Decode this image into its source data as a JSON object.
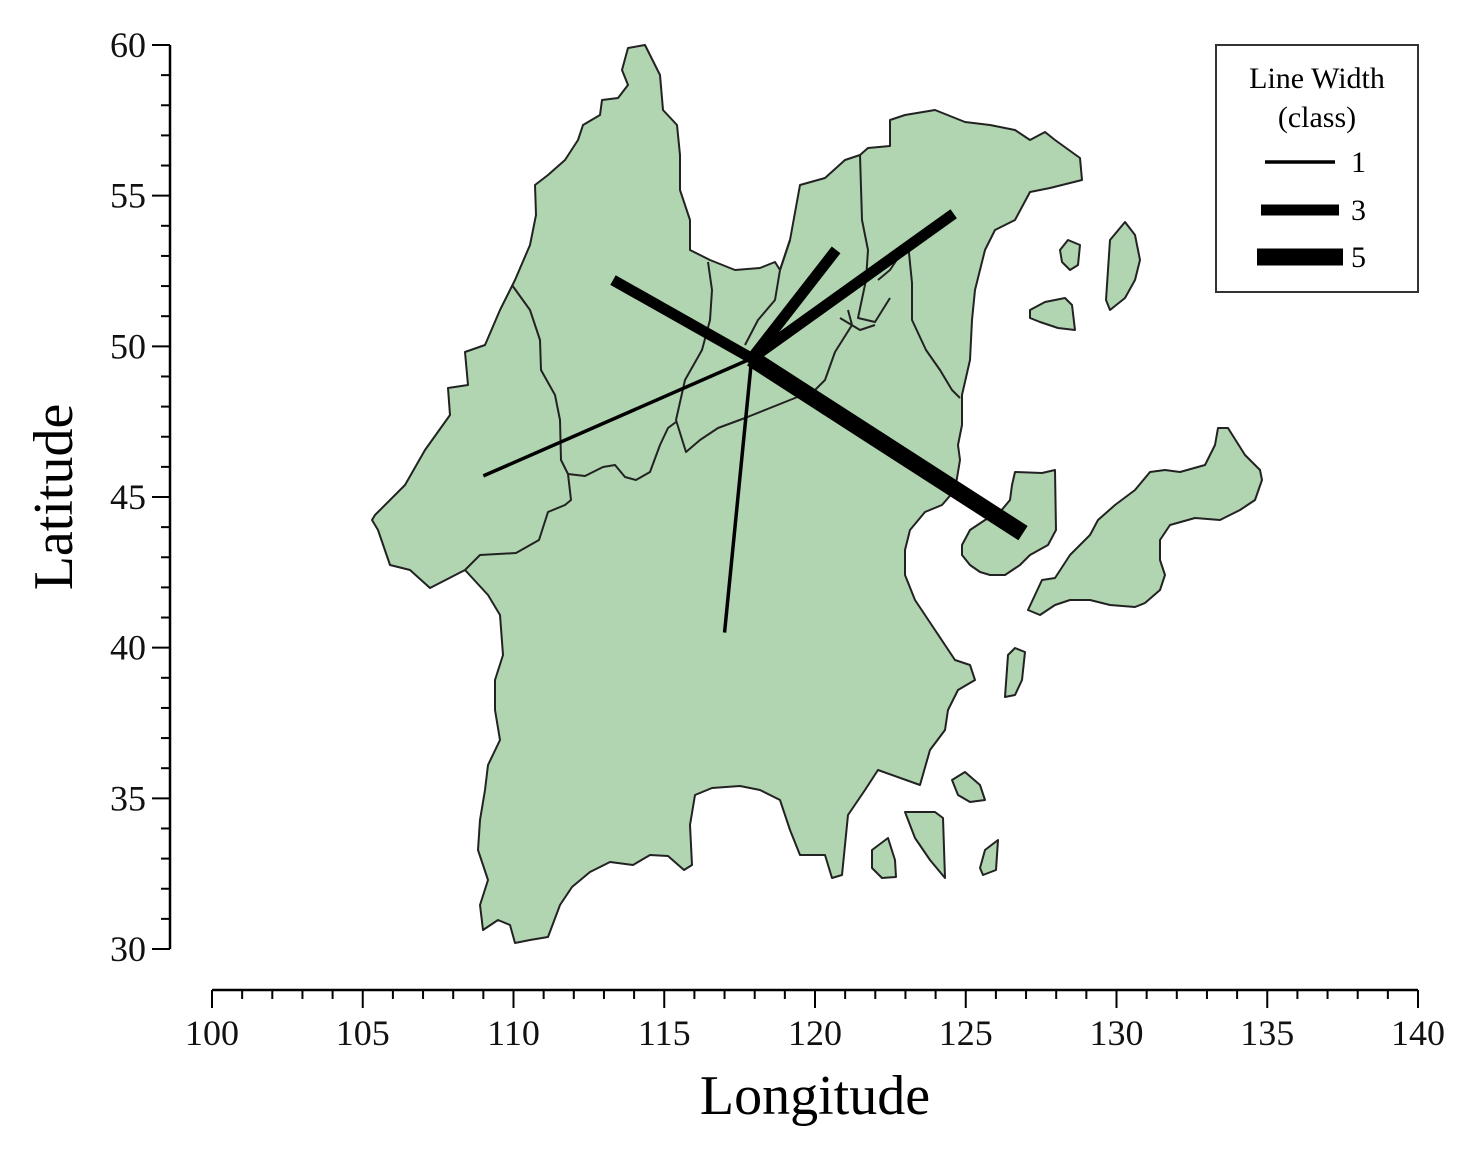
{
  "chart_data": {
    "type": "map-flow",
    "xlabel": "Longitude",
    "ylabel": "Latitude",
    "xlim": [
      100,
      140
    ],
    "ylim": [
      30,
      60
    ],
    "x_ticks": [
      "100",
      "105",
      "110",
      "115",
      "120",
      "125",
      "130",
      "135",
      "140"
    ],
    "y_ticks": [
      "30",
      "35",
      "40",
      "45",
      "50",
      "55",
      "60"
    ],
    "land_color": "#b1d4b1",
    "line_color": "#000000",
    "origin": [
      117.9,
      49.6
    ],
    "flows": [
      {
        "to": [
          109.0,
          45.7
        ],
        "class": 1
      },
      {
        "to": [
          117.0,
          40.5
        ],
        "class": 1
      },
      {
        "to": [
          113.3,
          52.2
        ],
        "class": 3
      },
      {
        "to": [
          120.7,
          53.2
        ],
        "class": 3
      },
      {
        "to": [
          124.6,
          54.4
        ],
        "class": 3
      },
      {
        "to": [
          126.9,
          43.8
        ],
        "class": 5
      }
    ],
    "legend": {
      "title_line1": "Line Width",
      "title_line2": "(class)",
      "position": "top-right",
      "items": [
        {
          "label": "1",
          "class": 1
        },
        {
          "label": "3",
          "class": 3
        },
        {
          "label": "5",
          "class": 5
        }
      ]
    }
  }
}
